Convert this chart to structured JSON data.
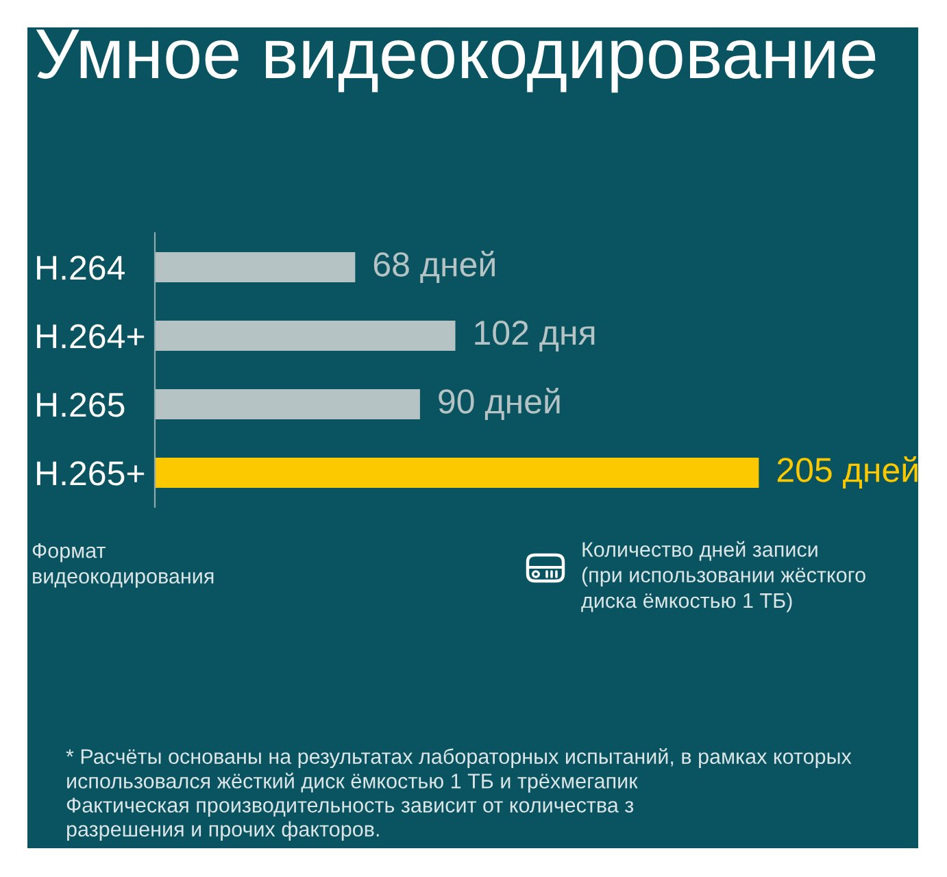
{
  "chart_data": {
    "type": "bar",
    "orientation": "horizontal",
    "title": "Умное видеокодирование",
    "categories": [
      "H.264",
      "H.264+",
      "H.265",
      "H.265+"
    ],
    "values": [
      68,
      102,
      90,
      205
    ],
    "colors": [
      "#b5c3c4",
      "#b5c3c4",
      "#b5c3c4",
      "#fcc900"
    ],
    "value_labels": [
      "68 дней",
      "102 дня",
      "90 дней",
      "205 дней"
    ],
    "xlabel": "Количество дней записи\n(при использовании жёсткого\nдиска ёмкостью 1 ТБ)",
    "ylabel": "Формат\nвидеокодирования",
    "tick_labels": "y",
    "annotations": [
      "* Расчёты основаны на результатах лабораторных испытаний, в рамках которых\nиспользовался жёсткий диск ёмкостью 1 ТБ и трёхмегапик\nФактическая производительность зависит от количества з\nразрешения и прочих факторов."
    ]
  }
}
